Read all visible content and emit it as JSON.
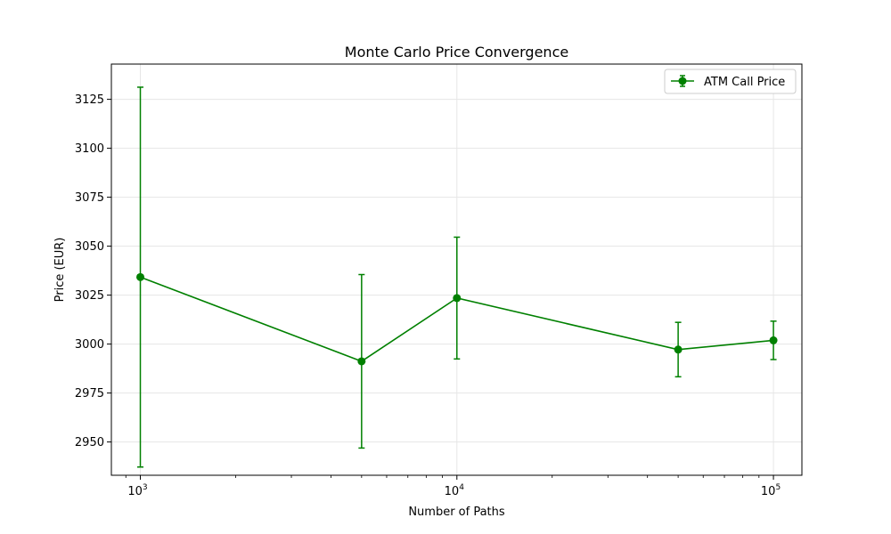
{
  "chart_data": {
    "type": "line",
    "title": "Monte Carlo Price Convergence",
    "xlabel": "Number of Paths",
    "ylabel": "Price (EUR)",
    "xscale": "log",
    "xlim": [
      810,
      123000
    ],
    "ylim": [
      2933,
      3143
    ],
    "x_ticks": [
      1000,
      10000,
      100000
    ],
    "x_tick_labels": [
      {
        "base": "10",
        "exp": "3"
      },
      {
        "base": "10",
        "exp": "4"
      },
      {
        "base": "10",
        "exp": "5"
      }
    ],
    "y_ticks": [
      2950,
      2975,
      3000,
      3025,
      3050,
      3075,
      3100,
      3125
    ],
    "y_tick_labels": [
      "2950",
      "2975",
      "3000",
      "3025",
      "3050",
      "3075",
      "3100",
      "3125"
    ],
    "grid": true,
    "legend_position": "top-right",
    "series": [
      {
        "name": "ATM Call Price",
        "color": "#008000",
        "marker": "circle",
        "x": [
          1000,
          5000,
          10000,
          50000,
          100000
        ],
        "y": [
          3034.2,
          2991.2,
          3023.5,
          2997.2,
          3001.9
        ],
        "yerr": [
          97.0,
          44.3,
          31.1,
          13.9,
          9.8
        ]
      }
    ]
  }
}
